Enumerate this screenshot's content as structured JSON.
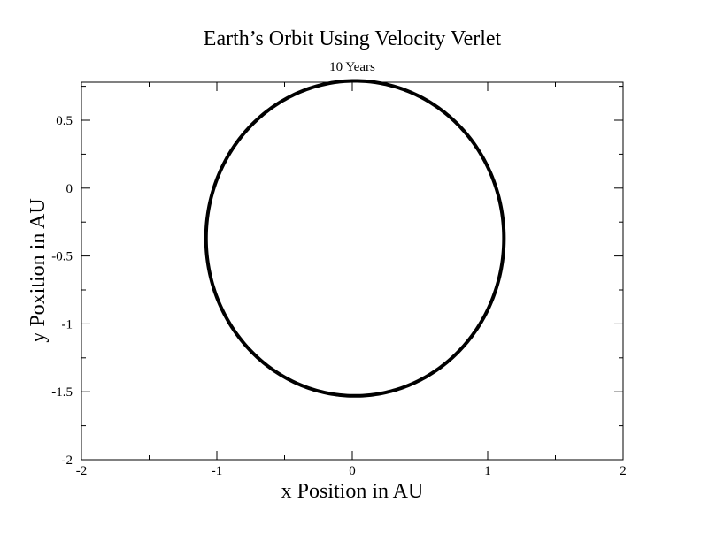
{
  "chart_data": {
    "type": "line",
    "title": "Earth’s Orbit Using Velocity Verlet",
    "subtitle": "10 Years",
    "xlabel": "x Position in AU",
    "ylabel": "y Poxition in AU",
    "xlim": [
      -2,
      2
    ],
    "ylim": [
      -2,
      0.78
    ],
    "x_ticks": [
      -2,
      -1,
      0,
      1,
      2
    ],
    "x_tick_labels": [
      "-2",
      "-1",
      "0",
      "1",
      "2"
    ],
    "y_ticks": [
      0.5,
      0,
      -0.5,
      -1,
      -1.5,
      -2
    ],
    "y_tick_labels": [
      "0.5",
      "0",
      "-0.5",
      "-1",
      "-1.5",
      "-2"
    ],
    "grid": false,
    "line_color": "#000000",
    "series": [
      {
        "shape": "ellipse",
        "center": [
          0.02,
          -0.37
        ],
        "semi_axis_x": 1.1,
        "semi_axis_y": 1.16
      }
    ]
  }
}
